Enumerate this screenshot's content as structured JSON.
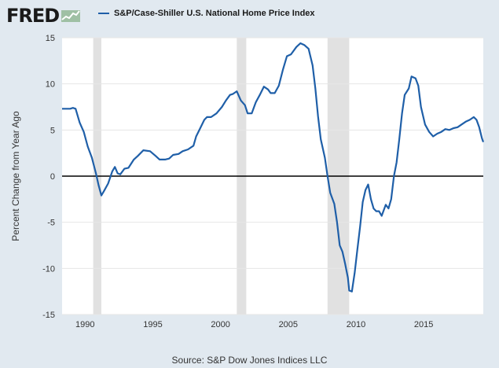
{
  "header": {
    "logo_text": "FRED",
    "logo_icon": "trend-line-icon",
    "legend_label": "S&P/Case-Shiller U.S. National Home Price Index",
    "legend_color": "#1f5fa8"
  },
  "source_text": "Source: S&P Dow Jones Indices LLC",
  "chart_data": {
    "type": "line",
    "title": "",
    "xlabel": "",
    "ylabel": "Percent Change from Year Ago",
    "xlim": [
      1988.3,
      2019.4
    ],
    "ylim": [
      -15,
      15
    ],
    "y_ticks": [
      15,
      10,
      5,
      0,
      -5,
      -10,
      -15
    ],
    "x_ticks": [
      1990,
      1995,
      2000,
      2005,
      2010,
      2015
    ],
    "recessions": [
      [
        1990.6,
        1991.2
      ],
      [
        2001.2,
        2001.9
      ],
      [
        2007.9,
        2009.5
      ]
    ],
    "zero_line": true,
    "grid": "horizontal",
    "series": [
      {
        "name": "S&P/Case-Shiller U.S. National Home Price Index",
        "color": "#1f5fa8",
        "points": [
          [
            1988.3,
            7.3
          ],
          [
            1988.7,
            7.3
          ],
          [
            1988.9,
            7.3
          ],
          [
            1989.1,
            7.4
          ],
          [
            1989.3,
            7.3
          ],
          [
            1989.6,
            5.8
          ],
          [
            1989.9,
            4.8
          ],
          [
            1990.2,
            3.2
          ],
          [
            1990.5,
            2.0
          ],
          [
            1990.8,
            0.3
          ],
          [
            1991.0,
            -1.0
          ],
          [
            1991.2,
            -2.1
          ],
          [
            1991.4,
            -1.6
          ],
          [
            1991.7,
            -0.8
          ],
          [
            1992.0,
            0.5
          ],
          [
            1992.2,
            1.0
          ],
          [
            1992.4,
            0.3
          ],
          [
            1992.6,
            0.2
          ],
          [
            1992.9,
            0.8
          ],
          [
            1993.2,
            0.9
          ],
          [
            1993.6,
            1.8
          ],
          [
            1993.9,
            2.2
          ],
          [
            1994.3,
            2.8
          ],
          [
            1994.8,
            2.7
          ],
          [
            1995.2,
            2.2
          ],
          [
            1995.5,
            1.8
          ],
          [
            1995.9,
            1.8
          ],
          [
            1996.2,
            1.9
          ],
          [
            1996.5,
            2.3
          ],
          [
            1996.9,
            2.4
          ],
          [
            1997.2,
            2.7
          ],
          [
            1997.6,
            2.9
          ],
          [
            1998.0,
            3.3
          ],
          [
            1998.2,
            4.3
          ],
          [
            1998.5,
            5.2
          ],
          [
            1998.8,
            6.1
          ],
          [
            1999.0,
            6.4
          ],
          [
            1999.3,
            6.4
          ],
          [
            1999.7,
            6.8
          ],
          [
            2000.1,
            7.5
          ],
          [
            2000.4,
            8.2
          ],
          [
            2000.7,
            8.8
          ],
          [
            2000.9,
            8.9
          ],
          [
            2001.2,
            9.2
          ],
          [
            2001.5,
            8.2
          ],
          [
            2001.8,
            7.7
          ],
          [
            2002.0,
            6.8
          ],
          [
            2002.3,
            6.8
          ],
          [
            2002.6,
            8.0
          ],
          [
            2002.9,
            8.8
          ],
          [
            2003.2,
            9.7
          ],
          [
            2003.5,
            9.4
          ],
          [
            2003.7,
            9.0
          ],
          [
            2004.0,
            9.0
          ],
          [
            2004.3,
            9.8
          ],
          [
            2004.6,
            11.5
          ],
          [
            2004.9,
            13.0
          ],
          [
            2005.2,
            13.2
          ],
          [
            2005.6,
            14.0
          ],
          [
            2005.9,
            14.4
          ],
          [
            2006.2,
            14.2
          ],
          [
            2006.5,
            13.8
          ],
          [
            2006.8,
            12.0
          ],
          [
            2007.0,
            9.5
          ],
          [
            2007.2,
            6.5
          ],
          [
            2007.4,
            4.0
          ],
          [
            2007.7,
            2.0
          ],
          [
            2007.9,
            0.0
          ],
          [
            2008.1,
            -1.8
          ],
          [
            2008.4,
            -3.0
          ],
          [
            2008.6,
            -5.0
          ],
          [
            2008.8,
            -7.5
          ],
          [
            2009.0,
            -8.2
          ],
          [
            2009.2,
            -9.5
          ],
          [
            2009.4,
            -11.0
          ],
          [
            2009.5,
            -12.4
          ],
          [
            2009.7,
            -12.5
          ],
          [
            2009.9,
            -10.5
          ],
          [
            2010.1,
            -8.0
          ],
          [
            2010.3,
            -5.5
          ],
          [
            2010.5,
            -2.8
          ],
          [
            2010.7,
            -1.5
          ],
          [
            2010.9,
            -0.9
          ],
          [
            2011.1,
            -2.5
          ],
          [
            2011.3,
            -3.5
          ],
          [
            2011.5,
            -3.8
          ],
          [
            2011.7,
            -3.8
          ],
          [
            2011.9,
            -4.3
          ],
          [
            2012.2,
            -3.1
          ],
          [
            2012.4,
            -3.5
          ],
          [
            2012.6,
            -2.5
          ],
          [
            2012.8,
            0.0
          ],
          [
            2013.0,
            1.5
          ],
          [
            2013.2,
            4.0
          ],
          [
            2013.4,
            6.8
          ],
          [
            2013.6,
            8.8
          ],
          [
            2013.9,
            9.5
          ],
          [
            2014.1,
            10.8
          ],
          [
            2014.4,
            10.6
          ],
          [
            2014.6,
            9.8
          ],
          [
            2014.8,
            7.5
          ],
          [
            2015.1,
            5.6
          ],
          [
            2015.4,
            4.8
          ],
          [
            2015.7,
            4.3
          ],
          [
            2016.0,
            4.6
          ],
          [
            2016.3,
            4.8
          ],
          [
            2016.6,
            5.1
          ],
          [
            2016.9,
            5.0
          ],
          [
            2017.2,
            5.2
          ],
          [
            2017.5,
            5.3
          ],
          [
            2017.8,
            5.6
          ],
          [
            2018.1,
            5.9
          ],
          [
            2018.4,
            6.1
          ],
          [
            2018.7,
            6.4
          ],
          [
            2018.9,
            6.1
          ],
          [
            2019.1,
            5.3
          ],
          [
            2019.3,
            4.1
          ],
          [
            2019.4,
            3.7
          ]
        ]
      }
    ]
  }
}
